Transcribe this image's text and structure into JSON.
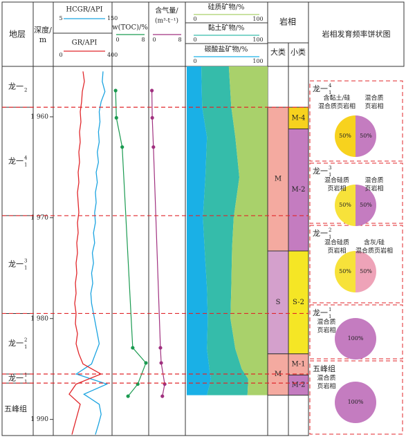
{
  "headers": {
    "strata": "地层",
    "depth": [
      "深度/",
      "m"
    ]
  },
  "depth_axis": {
    "lim": [
      1955,
      1991.6
    ],
    "ticks": [
      {
        "value": 1960,
        "label": "1 960"
      },
      {
        "value": 1970,
        "label": "1 970"
      },
      {
        "value": 1980,
        "label": "1 980"
      },
      {
        "value": 1990,
        "label": "1 990"
      }
    ]
  },
  "strata": [
    {
      "name": "龙一",
      "sub": "2",
      "top": 1955,
      "base": 1959.05
    },
    {
      "name": "龙一",
      "sub": "1",
      "sup": "4",
      "top": 1959.05,
      "base": 1969.8
    },
    {
      "name": "龙一",
      "sub": "1",
      "sup": "3",
      "top": 1969.8,
      "base": 1979.5
    },
    {
      "name": "龙一",
      "sub": "1",
      "sup": "2",
      "top": 1979.5,
      "base": 1985.5
    },
    {
      "name": "龙一",
      "sub": "1",
      "sup": "1",
      "top": 1985.5,
      "base": 1986.4
    },
    {
      "name": "五峰组",
      "top": 1986.4,
      "base": 1991.6
    }
  ],
  "log": {
    "depth": [
      1955.5,
      1956.5,
      1957.5,
      1958.5,
      1959.5,
      1960.5,
      1961.5,
      1962.5,
      1963.5,
      1964.5,
      1965.5,
      1966.5,
      1967.5,
      1968.5,
      1969.5,
      1970.5,
      1971.5,
      1972.5,
      1973.5,
      1974.5,
      1975.5,
      1976.5,
      1977.5,
      1978.5,
      1979.5,
      1980.5,
      1981.5,
      1982.5,
      1983.5,
      1984.5,
      1985.5,
      1986.5,
      1987.5,
      1988.5,
      1989.5,
      1990.5,
      1991.5
    ],
    "hcgr": {
      "title": "HCGR/API",
      "color": "#1aa3e0",
      "lim": [
        5,
        150
      ],
      "values": [
        130,
        128,
        135,
        125,
        120,
        122,
        118,
        120,
        115,
        118,
        112,
        115,
        110,
        112,
        108,
        110,
        105,
        108,
        102,
        105,
        100,
        103,
        98,
        100,
        105,
        110,
        115,
        120,
        110,
        100,
        60,
        140,
        80,
        120,
        125,
        118,
        110
      ]
    },
    "gr": {
      "title": "GR/API",
      "color": "#e0262a",
      "lim": [
        0,
        400
      ],
      "values": [
        200,
        210,
        195,
        190,
        180,
        185,
        175,
        180,
        170,
        175,
        165,
        170,
        160,
        165,
        170,
        160,
        165,
        155,
        160,
        150,
        155,
        145,
        150,
        140,
        150,
        145,
        160,
        150,
        170,
        200,
        330,
        150,
        100,
        180,
        160,
        140,
        120
      ]
    }
  },
  "toc": {
    "title": "w(TOC)/%",
    "color": "#1a9a50",
    "lim": [
      0,
      8
    ],
    "depth": [
      1957.4,
      1960.1,
      1963.0,
      1982.9,
      1984.4,
      1986.5,
      1987.7
    ],
    "values": [
      0.2,
      0.4,
      1.9,
      4.6,
      8.0,
      5.9,
      3.4
    ]
  },
  "gas": {
    "title": [
      "含气量/",
      "(m³·t⁻¹)"
    ],
    "color": "#a0307f",
    "lim": [
      0,
      8
    ],
    "depth": [
      1957.4,
      1960.1,
      1963.0,
      1982.9,
      1984.4,
      1986.5,
      1987.7
    ],
    "values": [
      0.1,
      0.2,
      0.5,
      2.3,
      2.5,
      3.4,
      2.8
    ]
  },
  "minerals": {
    "depth": [
      1955,
      1959,
      1962,
      1966,
      1970,
      1973,
      1977,
      1980,
      1983,
      1985,
      1986,
      1987.6
    ],
    "series": [
      {
        "name": "硅质矿物/%",
        "color": "#a9d16b",
        "lim": [
          0,
          100
        ],
        "values": [
          48,
          45,
          40,
          35,
          42,
          44,
          45,
          46,
          40,
          32,
          24,
          25
        ]
      },
      {
        "name": "黏土矿物/%",
        "color": "#35bcaa",
        "lim": [
          0,
          100
        ],
        "values": [
          34,
          36,
          35,
          42,
          38,
          34,
          30,
          28,
          35,
          40,
          46,
          50
        ]
      },
      {
        "name": "碳酸盐矿物/%",
        "color": "#1ab0e6",
        "lim": [
          0,
          100
        ],
        "values": [
          18,
          19,
          25,
          23,
          20,
          22,
          25,
          26,
          25,
          28,
          30,
          25
        ]
      }
    ]
  },
  "facies": {
    "title": "岩相",
    "major_title": "大类",
    "minor_title": "小类",
    "major": [
      {
        "label": "M",
        "top": 1959.05,
        "base": 1973.3,
        "color": "#f4aaa0"
      },
      {
        "label": "S",
        "top": 1973.3,
        "base": 1983.5,
        "color": "#d4a0cc"
      },
      {
        "label": "M",
        "top": 1983.5,
        "base": 1987.6,
        "color": "#f4aaa0"
      }
    ],
    "minor": [
      {
        "label": "M-4",
        "top": 1959.05,
        "base": 1961.2,
        "color": "#f7d21e"
      },
      {
        "label": "M-2",
        "top": 1961.2,
        "base": 1973.3,
        "color": "#c47cc0"
      },
      {
        "label": "S-2",
        "top": 1973.3,
        "base": 1983.5,
        "color": "#f5e625"
      },
      {
        "label": "M-1",
        "top": 1983.5,
        "base": 1985.6,
        "color": "#f4aaa0"
      },
      {
        "label": "M-2",
        "top": 1985.6,
        "base": 1987.6,
        "color": "#c47cc0"
      }
    ]
  },
  "pies": {
    "title": "岩相发育频率饼状图",
    "items": [
      {
        "stratum": {
          "name": "龙一",
          "sub": "1",
          "sup": "4"
        },
        "slices": [
          {
            "name": [
              "含黏土/硅",
              "混合质页岩相"
            ],
            "color": "#f7d21e",
            "value": 50,
            "value_label": "50%"
          },
          {
            "name": [
              "混合质",
              "页岩相"
            ],
            "color": "#c47cc0",
            "value": 50,
            "value_label": "50%"
          }
        ]
      },
      {
        "stratum": {
          "name": "龙一",
          "sub": "1",
          "sup": "3"
        },
        "slices": [
          {
            "name": [
              "混合硅质",
              "页岩相"
            ],
            "color": "#f7e23a",
            "value": 50,
            "value_label": "50%"
          },
          {
            "name": [
              "混合质",
              "页岩相"
            ],
            "color": "#c47cc0",
            "value": 50,
            "value_label": "50%"
          }
        ]
      },
      {
        "stratum": {
          "name": "龙一",
          "sub": "1",
          "sup": "2"
        },
        "slices": [
          {
            "name": [
              "混合硅质",
              "页岩相"
            ],
            "color": "#f7e23a",
            "value": 50,
            "value_label": "50%"
          },
          {
            "name": [
              "含灰/硅",
              "混合质页岩相"
            ],
            "color": "#eea3b8",
            "value": 50,
            "value_label": "50%"
          }
        ]
      },
      {
        "stratum": {
          "name": "龙一",
          "sub": "1",
          "sup": "1"
        },
        "slices": [
          {
            "name": [
              "混合质",
              "页岩相"
            ],
            "color": "#c47cc0",
            "value": 100,
            "value_label": "100%"
          }
        ]
      },
      {
        "stratum": {
          "name": "五峰组"
        },
        "slices": [
          {
            "name": [
              "混合质",
              "页岩相"
            ],
            "color": "#c47cc0",
            "value": 100,
            "value_label": "100%"
          }
        ]
      }
    ]
  }
}
